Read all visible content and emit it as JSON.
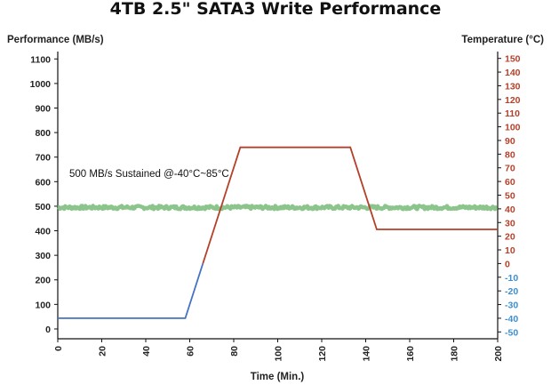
{
  "chart_data": {
    "type": "line",
    "title": "4TB 2.5\" SATA3 Write Performance",
    "xlabel": "Time (Min.)",
    "ylabel_left": "Performance (MB/s)",
    "ylabel_right": "Temperature (°C)",
    "annotation": "500 MB/s Sustained @-40°C~85°C",
    "x_range": [
      0,
      200
    ],
    "x_ticks": [
      0,
      20,
      40,
      60,
      80,
      100,
      120,
      140,
      160,
      180,
      200
    ],
    "y_left_range": [
      -40,
      1130
    ],
    "y_left_ticks": [
      0,
      100,
      200,
      300,
      400,
      500,
      600,
      700,
      800,
      900,
      1000,
      1100
    ],
    "y_right_range": [
      -55,
      155
    ],
    "y_right_ticks": [
      -50,
      -40,
      -30,
      -20,
      -10,
      0,
      10,
      20,
      30,
      40,
      50,
      60,
      70,
      80,
      90,
      100,
      110,
      120,
      130,
      140,
      150
    ],
    "grid": false,
    "series": [
      {
        "axis": "left",
        "color": "#7fbf7f",
        "style": "noisy-band",
        "x": [
          0,
          200
        ],
        "values": [
          495,
          495
        ]
      },
      {
        "axis": "right",
        "color_below_zero": "#4472c4",
        "color_above_zero": "#b5402a",
        "x": [
          0,
          58,
          83,
          133,
          145,
          200
        ],
        "values": [
          -40,
          -40,
          85,
          85,
          25,
          25
        ]
      }
    ],
    "colors": {
      "right_axis_positive": "#b5402a",
      "right_axis_negative": "#3d8fd1",
      "axis_line": "#111111"
    }
  }
}
